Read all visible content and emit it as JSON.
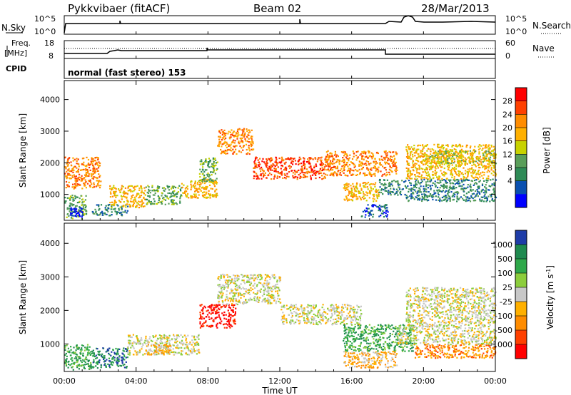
{
  "header": {
    "radar": "Pykkvibaer (fitACF)",
    "beam": "Beam 02",
    "date": "28/Mar/2013"
  },
  "nsky_panel": {
    "left_label": "N.Sky",
    "right_label": "N.Search",
    "left_ticks": [
      "10^5",
      "10^0"
    ],
    "right_ticks": [
      "10^5",
      "10^0"
    ]
  },
  "freq_panel": {
    "left_label_line1": "Freq.",
    "left_label_line2": "[MHz]",
    "right_label": "Nave",
    "left_ticks": [
      "18",
      "8"
    ],
    "right_ticks": [
      "60",
      "0"
    ]
  },
  "cpid_panel": {
    "label": "CPID",
    "text": "normal (fast stereo) 153"
  },
  "chart_data": [
    {
      "type": "heatmap",
      "name": "power",
      "ylabel": "Slant Range [km]",
      "yticks": [
        1000,
        2000,
        3000,
        4000
      ],
      "ylim": [
        180,
        4600
      ],
      "xlim": [
        0,
        24
      ],
      "colorbar_label": "Power [dB]",
      "colorbar_ticks": [
        "28",
        "24",
        "20",
        "16",
        "12",
        "8",
        "4"
      ],
      "colorbar_colors": [
        "#ff0000",
        "#ff4000",
        "#ff8c00",
        "#ffb000",
        "#c8d200",
        "#5a9e5a",
        "#2e8b57",
        "#0a50b0",
        "#0000ff"
      ],
      "regions": [
        {
          "t0": 0.0,
          "t1": 1.2,
          "r0": 250,
          "r1": 1000,
          "level": 5
        },
        {
          "t0": 0.3,
          "t1": 1.0,
          "r0": 300,
          "r1": 600,
          "level": 8
        },
        {
          "t0": 0.0,
          "t1": 2.0,
          "r0": 1200,
          "r1": 2200,
          "level": 2
        },
        {
          "t0": 1.5,
          "t1": 3.5,
          "r0": 350,
          "r1": 700,
          "level": 6
        },
        {
          "t0": 2.5,
          "t1": 4.5,
          "r0": 600,
          "r1": 1300,
          "level": 3
        },
        {
          "t0": 4.5,
          "t1": 6.5,
          "r0": 700,
          "r1": 1300,
          "level": 5
        },
        {
          "t0": 6.5,
          "t1": 8.5,
          "r0": 900,
          "r1": 1500,
          "level": 3
        },
        {
          "t0": 7.5,
          "t1": 8.5,
          "r0": 1400,
          "r1": 2200,
          "level": 5
        },
        {
          "t0": 8.5,
          "t1": 10.5,
          "r0": 2300,
          "r1": 3100,
          "level": 2
        },
        {
          "t0": 10.5,
          "t1": 14.5,
          "r0": 1500,
          "r1": 2200,
          "level": 1
        },
        {
          "t0": 14.5,
          "t1": 18.5,
          "r0": 1600,
          "r1": 2400,
          "level": 2
        },
        {
          "t0": 16.5,
          "t1": 18.0,
          "r0": 300,
          "r1": 700,
          "level": 7
        },
        {
          "t0": 15.5,
          "t1": 17.5,
          "r0": 800,
          "r1": 1400,
          "level": 3
        },
        {
          "t0": 17.5,
          "t1": 19.0,
          "r0": 1000,
          "r1": 1500,
          "level": 6
        },
        {
          "t0": 19.0,
          "t1": 24.0,
          "r0": 800,
          "r1": 1500,
          "level": 6
        },
        {
          "t0": 19.0,
          "t1": 24.0,
          "r0": 1500,
          "r1": 2600,
          "level": 3
        },
        {
          "t0": 20.0,
          "t1": 24.0,
          "r0": 2000,
          "r1": 2400,
          "level": 4
        }
      ]
    },
    {
      "type": "heatmap",
      "name": "velocity",
      "ylabel": "Slant Range [km]",
      "yticks": [
        1000,
        2000,
        3000,
        4000
      ],
      "ylim": [
        180,
        4600
      ],
      "xlim": [
        0,
        24
      ],
      "xlabel": "Time UT",
      "xticks": [
        "00:00",
        "04:00",
        "08:00",
        "12:00",
        "16:00",
        "20:00",
        "00:00"
      ],
      "colorbar_label": "Velocity [m s^-1]",
      "colorbar_ticks": [
        "1000",
        "500",
        "100",
        "25",
        "-25",
        "-100",
        "-500",
        "-1000"
      ],
      "colorbar_colors": [
        "#1e3ca8",
        "#1f8a4f",
        "#2ea84a",
        "#8ccd3c",
        "#c8c8c8",
        "#ffb000",
        "#ff8c00",
        "#ff4000",
        "#ff0000"
      ],
      "regions": [
        {
          "t0": 0.0,
          "t1": 1.5,
          "r0": 250,
          "r1": 1000,
          "level": 2
        },
        {
          "t0": 1.5,
          "t1": 3.5,
          "r0": 300,
          "r1": 900,
          "level": 1
        },
        {
          "t0": 3.5,
          "t1": 7.5,
          "r0": 700,
          "r1": 1300,
          "level": 4
        },
        {
          "t0": 4.5,
          "t1": 6.0,
          "r0": 700,
          "r1": 1000,
          "level": 5
        },
        {
          "t0": 7.5,
          "t1": 9.5,
          "r0": 1500,
          "r1": 2200,
          "level": 8
        },
        {
          "t0": 8.5,
          "t1": 12.0,
          "r0": 2200,
          "r1": 3100,
          "level": 4
        },
        {
          "t0": 12.0,
          "t1": 16.5,
          "r0": 1600,
          "r1": 2200,
          "level": 4
        },
        {
          "t0": 15.5,
          "t1": 18.5,
          "r0": 300,
          "r1": 800,
          "level": 5
        },
        {
          "t0": 15.5,
          "t1": 19.5,
          "r0": 800,
          "r1": 1600,
          "level": 2
        },
        {
          "t0": 18.5,
          "t1": 24.0,
          "r0": 1000,
          "r1": 1500,
          "level": 4
        },
        {
          "t0": 19.5,
          "t1": 24.0,
          "r0": 600,
          "r1": 1000,
          "level": 6
        },
        {
          "t0": 19.0,
          "t1": 24.0,
          "r0": 1500,
          "r1": 2700,
          "level": 4
        }
      ]
    }
  ]
}
